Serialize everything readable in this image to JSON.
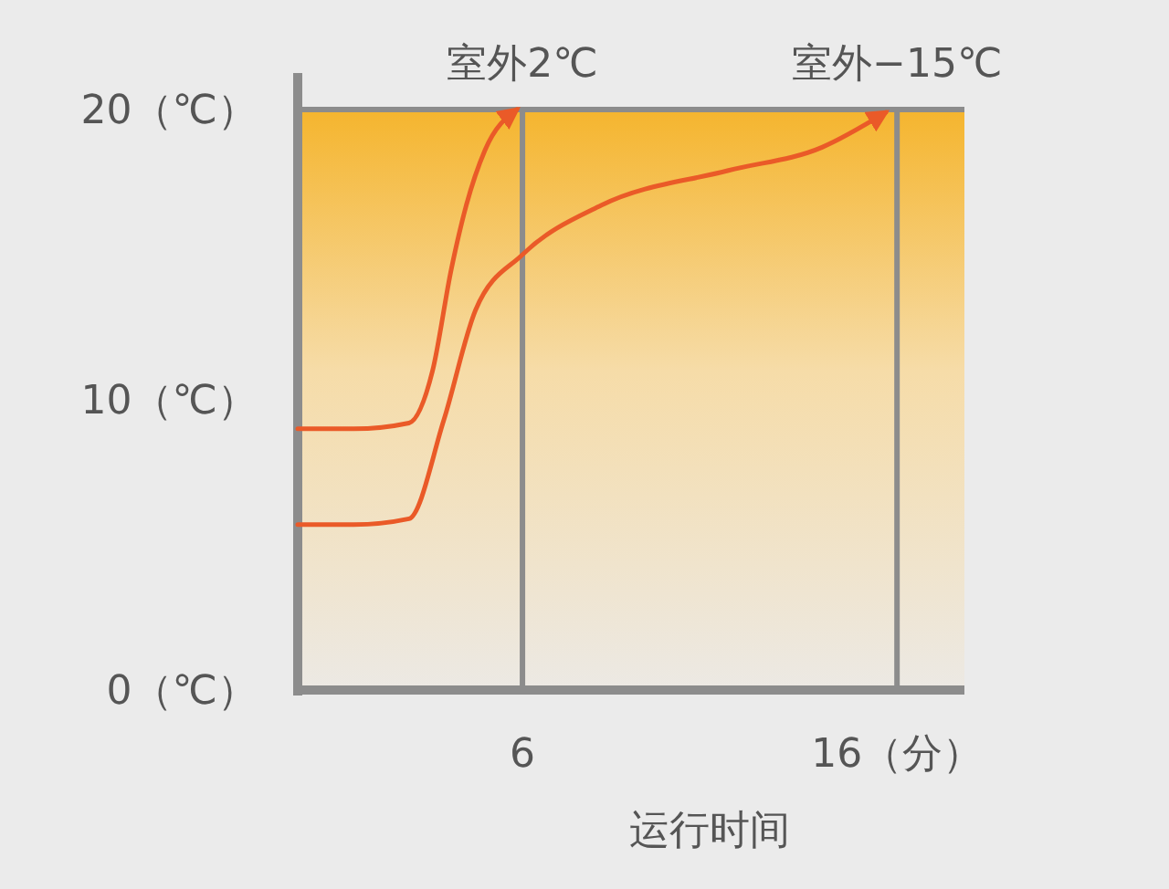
{
  "chart_data": {
    "type": "line",
    "xlabel": "运行时间",
    "xlim": [
      0,
      17.8
    ],
    "ylim": [
      0,
      20
    ],
    "xticks": [
      6,
      {
        "value": 16,
        "label": "16（分）"
      }
    ],
    "yticks": [
      {
        "value": 0,
        "label": "0（℃）"
      },
      {
        "value": 10,
        "label": "10（℃）"
      },
      {
        "value": 20,
        "label": "20（℃）"
      }
    ],
    "marker": "none",
    "line_style": "solid",
    "series": [
      {
        "color": "#ea5a28",
        "x": [
          0,
          1.5,
          2.97,
          3.6,
          4.1,
          4.5,
          5.0,
          5.85
        ],
        "values": [
          9.0,
          9.0,
          9.2,
          11.0,
          14.5,
          16.7,
          18.6,
          20
        ]
      },
      {
        "color": "#ea5a28",
        "x": [
          0,
          1.5,
          2.97,
          3.9,
          4.75,
          6.0,
          8.1,
          11.5,
          14.0,
          15.7
        ],
        "values": [
          5.7,
          5.7,
          5.9,
          9.3,
          13.1,
          15.0,
          16.7,
          17.9,
          18.7,
          19.9
        ]
      }
    ],
    "ref_lines": [
      {
        "axis": "x",
        "value": 6,
        "label": "室外2℃",
        "color": "#8c8c8c"
      },
      {
        "axis": "x",
        "value": 16,
        "label": "室外−15℃",
        "color": "#8c8c8c"
      }
    ]
  }
}
